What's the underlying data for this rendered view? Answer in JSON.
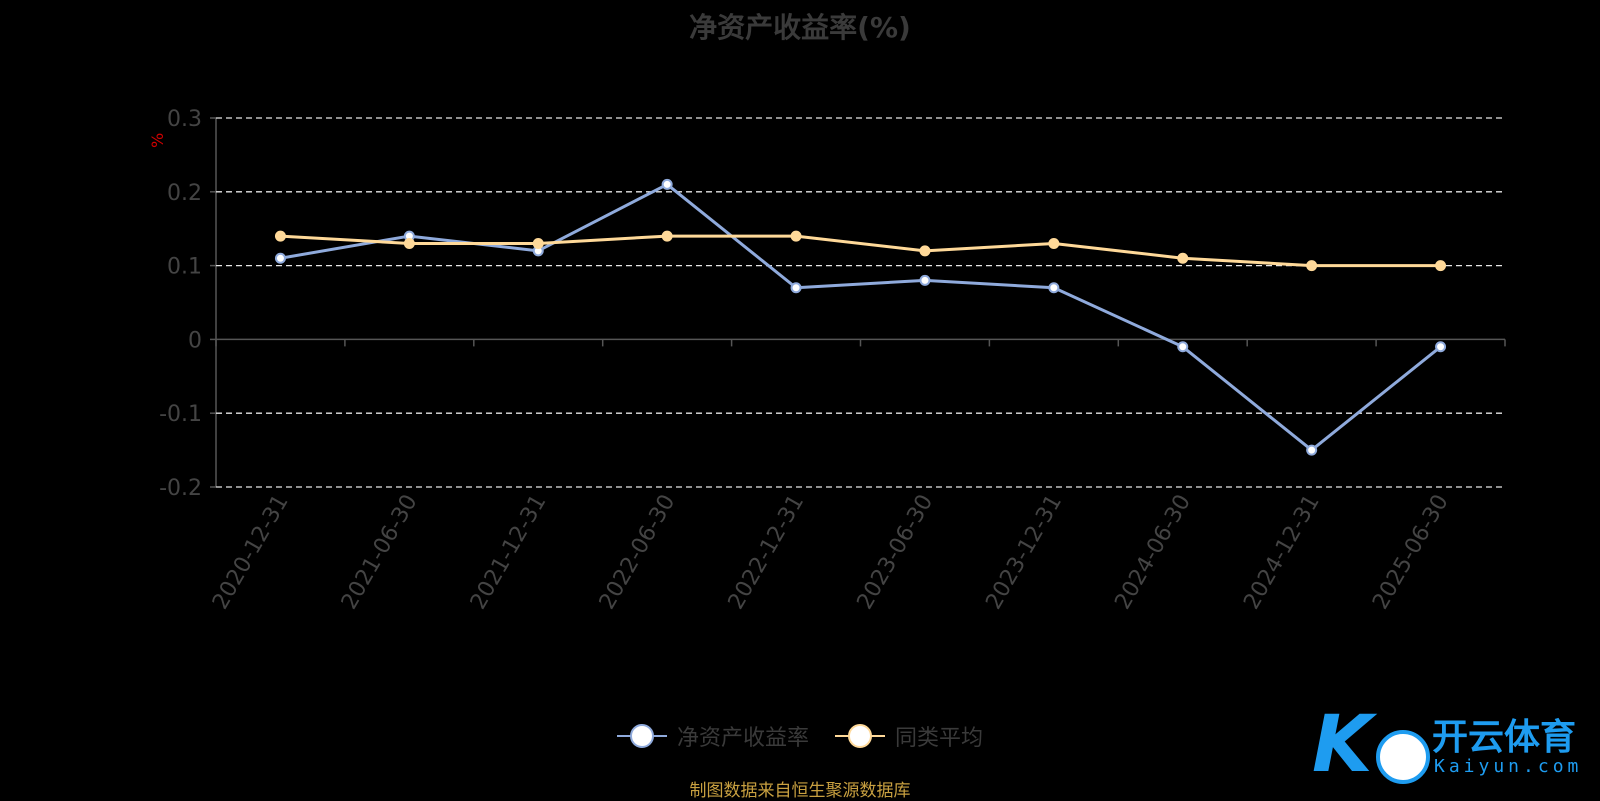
{
  "chart_data": {
    "type": "line",
    "title": "净资产收益率(%)",
    "y_unit": "%",
    "x": [
      "2020-12-31",
      "2021-06-30",
      "2021-12-31",
      "2022-06-30",
      "2022-12-31",
      "2023-06-30",
      "2023-12-31",
      "2024-06-30",
      "2024-12-31",
      "2025-06-30"
    ],
    "ylim": [
      -0.2,
      0.3
    ],
    "yticks": [
      "0.3",
      "0.2",
      "0.1",
      "0",
      "-0.1",
      "-0.2"
    ],
    "series": [
      {
        "name": "净资产收益率",
        "values": [
          0.11,
          0.14,
          0.12,
          0.21,
          0.07,
          0.08,
          0.07,
          -0.01,
          -0.15,
          -0.01
        ],
        "color": "#8faadc"
      },
      {
        "name": "同类平均",
        "values": [
          0.14,
          0.13,
          0.13,
          0.14,
          0.14,
          0.12,
          0.13,
          0.11,
          0.1,
          0.1
        ],
        "color": "#ffd999"
      }
    ],
    "grid": true,
    "legend_position": "bottom"
  },
  "source_note": "制图数据来自恒生聚源数据库",
  "watermark": {
    "cn": "开云体育",
    "en": "Kaiyun.com",
    "color": "#1e9cf0"
  }
}
